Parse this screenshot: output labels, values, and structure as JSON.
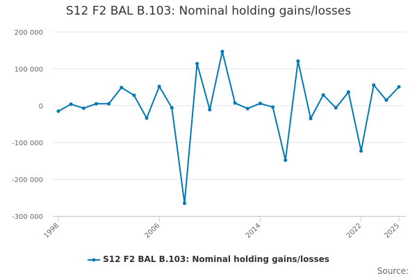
{
  "chart_data": {
    "type": "line",
    "title": "S12 F2 BAL B.103: Nominal holding gains/losses",
    "xlabel": "",
    "ylabel": "",
    "x": [
      1998,
      1999,
      2000,
      2001,
      2002,
      2003,
      2004,
      2005,
      2006,
      2007,
      2008,
      2009,
      2010,
      2011,
      2012,
      2013,
      2014,
      2015,
      2016,
      2017,
      2018,
      2019,
      2020,
      2021,
      2022,
      2023,
      2024,
      2025
    ],
    "series": [
      {
        "name": "S12 F2 BAL B.103: Nominal holding gains/losses",
        "color": "#0077b6",
        "values": [
          -15000,
          4000,
          -7000,
          5000,
          5000,
          49000,
          28000,
          -34000,
          52000,
          -6000,
          -265000,
          114000,
          -11000,
          147000,
          7000,
          -8000,
          6000,
          -4000,
          -148000,
          121000,
          -35000,
          29000,
          -6000,
          37000,
          -123000,
          56000,
          15000,
          51000
        ]
      }
    ],
    "ylim": [
      -300000,
      200000
    ],
    "yticks": [
      200000,
      100000,
      0,
      -100000,
      -200000,
      -300000
    ],
    "ytick_labels": [
      "200 000",
      "100 000",
      "0",
      "-100 000",
      "-200 000",
      "-300 000"
    ],
    "xticks": [
      1998,
      2006,
      2014,
      2022,
      2025
    ],
    "xtick_labels": [
      "1998",
      "2006",
      "2014",
      "2022",
      "2025"
    ],
    "grid": true,
    "legend_position": "bottom-center",
    "source_label": "Source:"
  }
}
